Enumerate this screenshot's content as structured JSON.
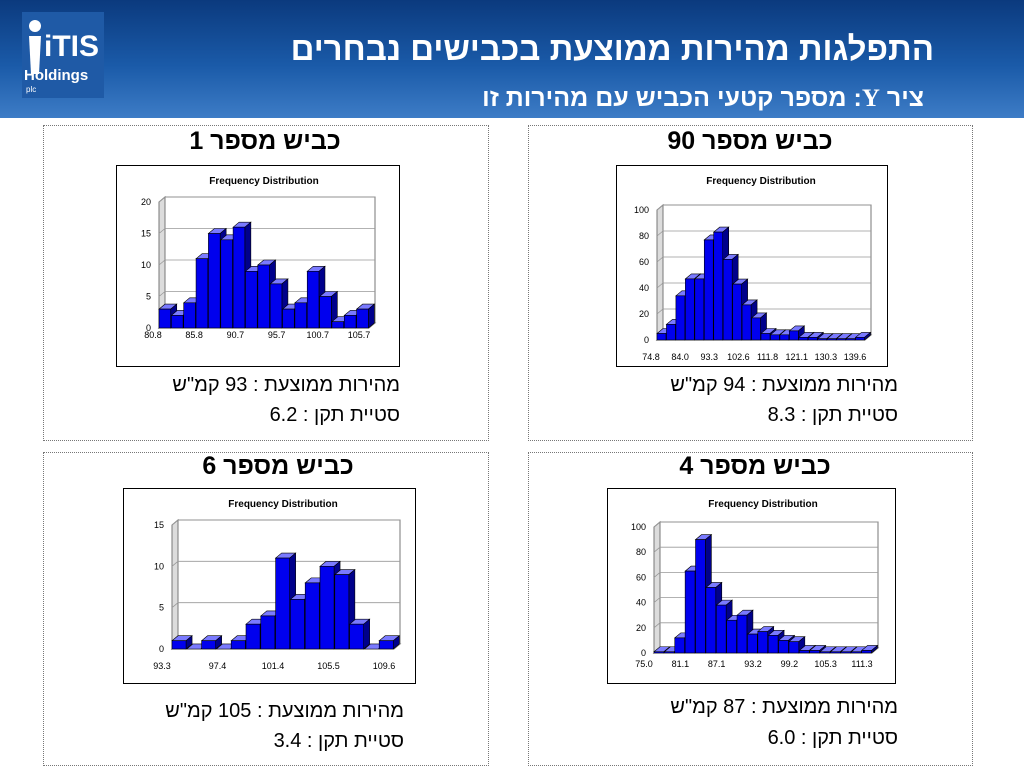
{
  "header": {
    "title": "התפלגות מהירות ממוצעת בכבישים נבחרים",
    "subtitle_prefix": "ציר",
    "subtitle_axis": "Y",
    "subtitle_rest": ": מספר קטעי הכביש עם מהירות זו",
    "logo_top": "iTIS",
    "logo_mid": "Holdings",
    "logo_small": "plc",
    "colors": {
      "header_dark": "#0b3a7e",
      "header_light": "#3d7cc6",
      "bar": "#0000ee"
    }
  },
  "panels": [
    {
      "key": "p1",
      "title": "כביש מספר 1",
      "mean_text": "מהירות ממוצעת : 93 קמ\"ש",
      "sd_text": "סטיית תקן : 6.2"
    },
    {
      "key": "p90",
      "title": "כביש מספר 90",
      "mean_text": "מהירות ממוצעת : 94 קמ\"ש",
      "sd_text": "סטיית תקן : 8.3"
    },
    {
      "key": "p6",
      "title": "כביש מספר 6",
      "mean_text": "מהירות ממוצעת : 105 קמ\"ש",
      "sd_text": "סטיית תקן : 3.4"
    },
    {
      "key": "p4",
      "title": "כביש מספר 4",
      "mean_text": "מהירות ממוצעת : 87 קמ\"ש",
      "sd_text": "סטיית תקן : 6.0"
    }
  ],
  "chart_data": [
    {
      "type": "bar",
      "title": "Frequency Distribution",
      "ylim": [
        0,
        20
      ],
      "yticks": [
        0,
        5,
        10,
        15,
        20
      ],
      "xtick_labels": [
        "80.8",
        "85.8",
        "90.7",
        "95.7",
        "100.7",
        "105.7"
      ],
      "values": [
        3,
        2,
        4,
        11,
        15,
        14,
        16,
        9,
        10,
        7,
        3,
        4,
        9,
        5,
        1,
        2,
        3
      ],
      "grid": true
    },
    {
      "type": "bar",
      "title": "Frequency Distribution",
      "ylim": [
        0,
        100
      ],
      "yticks": [
        0,
        20,
        40,
        60,
        80,
        100
      ],
      "xtick_labels": [
        "74.8",
        "84.0",
        "93.3",
        "102.6",
        "111.8",
        "121.1",
        "130.3",
        "139.6"
      ],
      "values": [
        5,
        12,
        34,
        47,
        47,
        77,
        83,
        62,
        43,
        27,
        17,
        5,
        4,
        4,
        7,
        2,
        2,
        1,
        1,
        1,
        1,
        2
      ],
      "grid": true
    },
    {
      "type": "bar",
      "title": "Frequency Distribution",
      "ylim": [
        0,
        15
      ],
      "yticks": [
        0,
        5,
        10,
        15
      ],
      "xtick_labels": [
        "93.3",
        "97.4",
        "101.4",
        "105.5",
        "109.6"
      ],
      "values": [
        1,
        0,
        1,
        0,
        1,
        3,
        4,
        11,
        6,
        8,
        10,
        9,
        3,
        0,
        1
      ],
      "grid": true
    },
    {
      "type": "bar",
      "title": "Frequency Distribution",
      "ylim": [
        0,
        100
      ],
      "yticks": [
        0,
        20,
        40,
        60,
        80,
        100
      ],
      "xtick_labels": [
        "75.0",
        "81.1",
        "87.1",
        "93.2",
        "99.2",
        "105.3",
        "111.3"
      ],
      "values": [
        1,
        1,
        12,
        65,
        90,
        52,
        38,
        26,
        30,
        15,
        17,
        14,
        10,
        9,
        2,
        2,
        1,
        1,
        1,
        1,
        2
      ],
      "grid": true
    }
  ]
}
